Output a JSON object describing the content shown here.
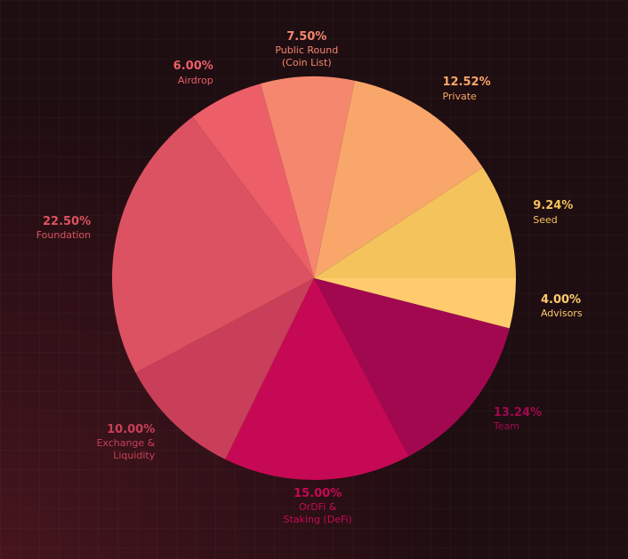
{
  "chart_data": {
    "type": "pie",
    "categories": [
      "Advisors",
      "Team",
      "OrDFi &\nStaking (DeFi)",
      "Exchange &\nLiquidity",
      "Foundation",
      "Airdrop",
      "Public Round\n(Coin List)",
      "Private",
      "Seed"
    ],
    "values": [
      4,
      13.24,
      15,
      10,
      22.5,
      6,
      7.5,
      12.52,
      9.24
    ],
    "value_labels": [
      "4.00%",
      "13.24%",
      "15.00%",
      "10.00%",
      "22.50%",
      "6.00%",
      "7.50%",
      "12.52%",
      "9.24%"
    ],
    "colors": [
      "#ffcb6c",
      "#a2084f",
      "#c60954",
      "#c93f59",
      "#dc5262",
      "#ec5f68",
      "#f4876e",
      "#f8a66a",
      "#f5c35b"
    ]
  }
}
